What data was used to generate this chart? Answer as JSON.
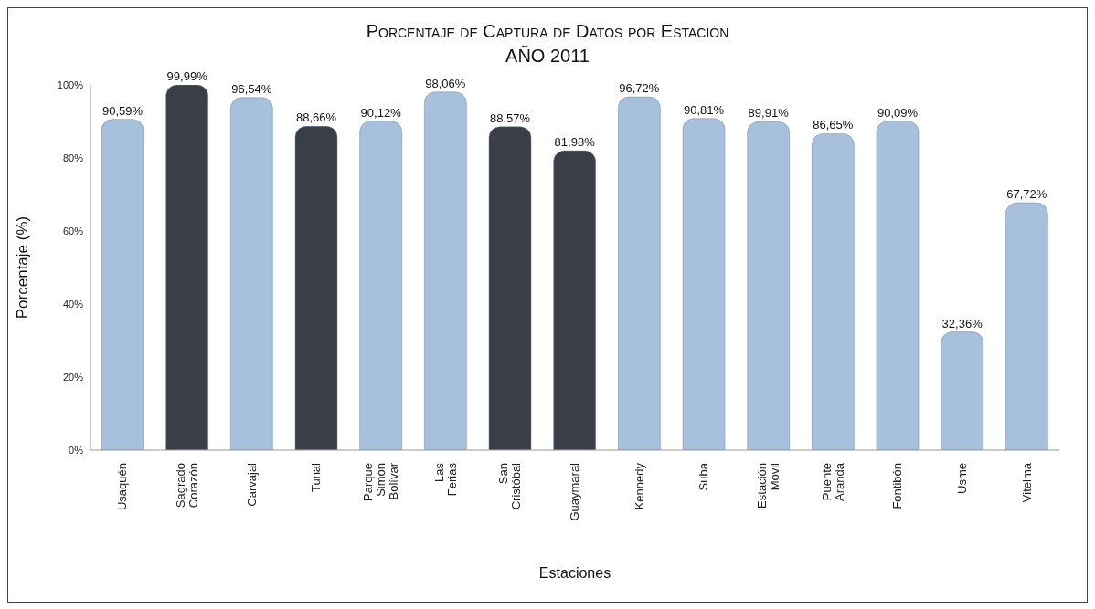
{
  "chart_data": {
    "type": "bar",
    "title": "Porcentaje de Captura de Datos por Estación",
    "subtitle": "AÑO 2011",
    "xlabel": "Estaciones",
    "ylabel": "Porcentaje (%)",
    "categories": [
      "Usaquén",
      "Sagrado Corazón",
      "Carvajal",
      "Tunal",
      "Parque Simón Bolívar",
      "Las Ferias",
      "San Cristóbal",
      "Guaymaral",
      "Kennedy",
      "Suba",
      "Estación Móvil",
      "Puente Aranda",
      "Fontibón",
      "Usme",
      "Vitelma"
    ],
    "values": [
      90.59,
      99.99,
      96.54,
      88.66,
      90.12,
      98.06,
      88.57,
      81.98,
      96.72,
      90.81,
      89.91,
      86.65,
      90.09,
      32.36,
      67.72
    ],
    "colors": [
      "#a7c0dc",
      "#3b3e47",
      "#a7c0dc",
      "#3b3e47",
      "#a7c0dc",
      "#a7c0dc",
      "#3b3e47",
      "#3b3e47",
      "#a7c0dc",
      "#a7c0dc",
      "#a7c0dc",
      "#a7c0dc",
      "#a7c0dc",
      "#a7c0dc",
      "#a7c0dc"
    ],
    "value_labels": [
      "90,59%",
      "99,99%",
      "96,54%",
      "88,66%",
      "90,12%",
      "98,06%",
      "88,57%",
      "81,98%",
      "96,72%",
      "90,81%",
      "89,91%",
      "86,65%",
      "90,09%",
      "32,36%",
      "67,72%"
    ],
    "ylim": [
      0,
      100
    ],
    "yticks": [
      {
        "value": 0,
        "label": "0%"
      },
      {
        "value": 20,
        "label": "20%"
      },
      {
        "value": 40,
        "label": "40%"
      },
      {
        "value": 60,
        "label": "60%"
      },
      {
        "value": 80,
        "label": "80%"
      },
      {
        "value": 100,
        "label": "100%"
      }
    ],
    "grid": false,
    "legend": false
  }
}
